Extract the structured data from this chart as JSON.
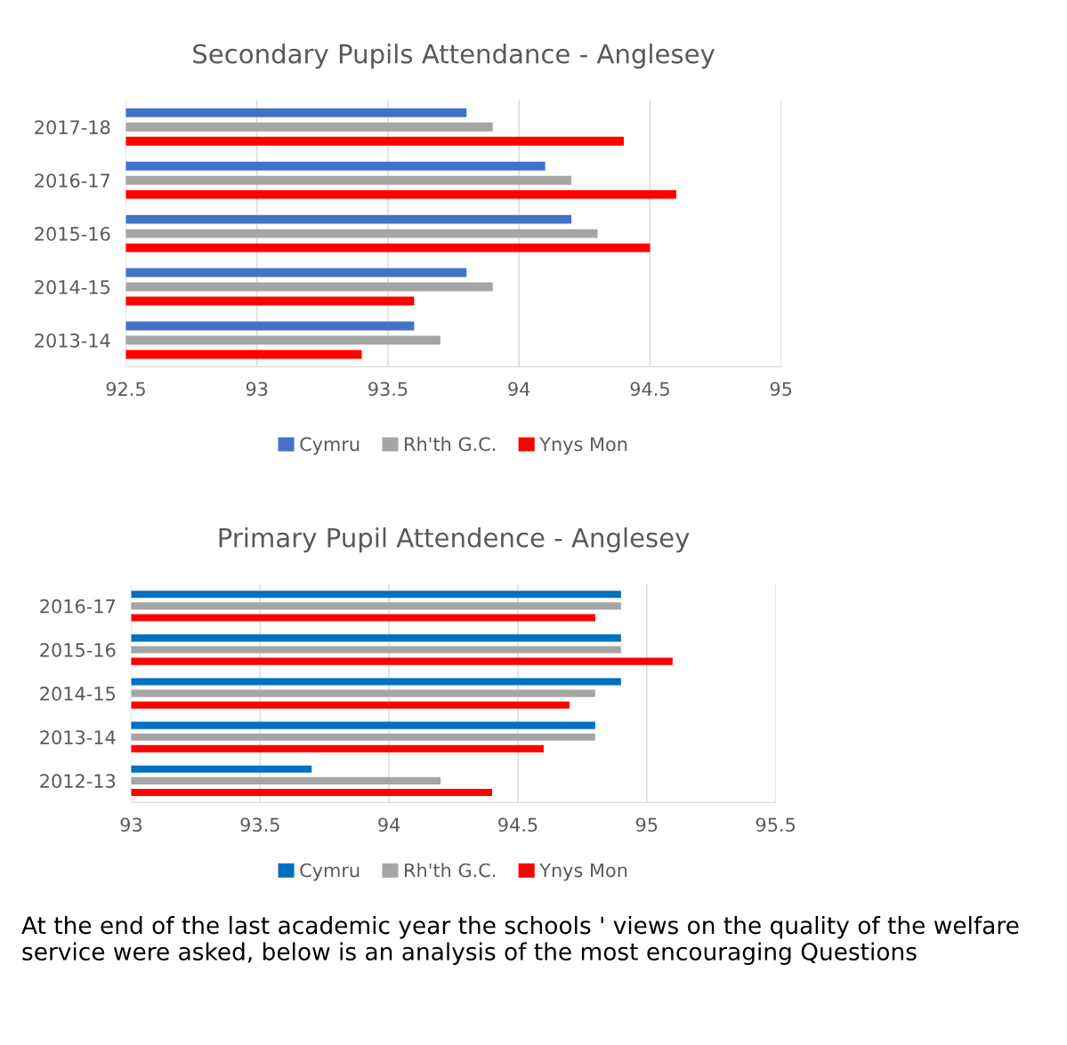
{
  "chart_data": [
    {
      "type": "bar",
      "orientation": "horizontal",
      "title": "Secondary Pupils Attendance - Anglesey",
      "categories": [
        "2017-18",
        "2016-17",
        "2015-16",
        "2014-15",
        "2013-14"
      ],
      "series": [
        {
          "name": "Cymru",
          "color": "#4472c4",
          "values": [
            93.8,
            94.1,
            94.2,
            93.8,
            93.6
          ]
        },
        {
          "name": "Rh'th G.C.",
          "color": "#a5a5a5",
          "values": [
            93.9,
            94.2,
            94.3,
            93.9,
            93.7
          ]
        },
        {
          "name": "Ynys Mon",
          "color": "#ff0000",
          "values": [
            94.4,
            94.6,
            94.5,
            93.6,
            93.4
          ]
        }
      ],
      "xlim": [
        92.5,
        95
      ],
      "xticks": [
        92.5,
        93,
        93.5,
        94,
        94.5,
        95
      ],
      "grid": "x",
      "legend": "bottom"
    },
    {
      "type": "bar",
      "orientation": "horizontal",
      "title": "Primary Pupil Attendence - Anglesey",
      "categories": [
        "2016-17",
        "2015-16",
        "2014-15",
        "2013-14",
        "2012-13"
      ],
      "series": [
        {
          "name": "Cymru",
          "color": "#0070c0",
          "values": [
            94.9,
            94.9,
            94.9,
            94.8,
            93.7
          ]
        },
        {
          "name": "Rh'th G.C.",
          "color": "#a5a5a5",
          "values": [
            94.9,
            94.9,
            94.8,
            94.8,
            94.2
          ]
        },
        {
          "name": "Ynys Mon",
          "color": "#ff0000",
          "values": [
            94.8,
            95.1,
            94.7,
            94.6,
            94.4
          ]
        }
      ],
      "xlim": [
        93,
        95.5
      ],
      "xticks": [
        93,
        93.5,
        94,
        94.5,
        95,
        95.5
      ],
      "grid": "x",
      "legend": "bottom",
      "annotations": [
        "At the end of the last academic year the schools ' views on the quality of the welfare service were asked, below is an analysis of the most encouraging Questions"
      ]
    }
  ]
}
